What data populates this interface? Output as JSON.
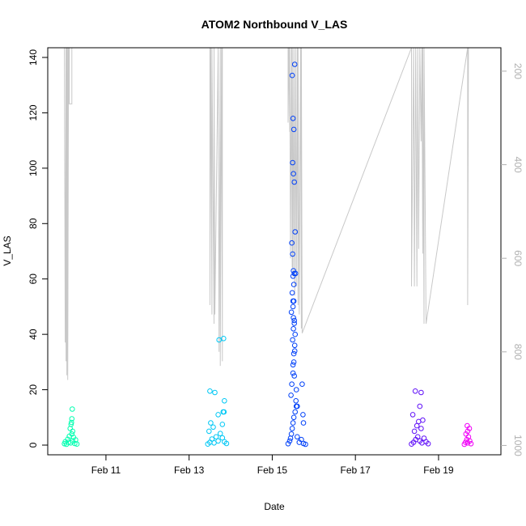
{
  "chart_data": {
    "type": "scatter",
    "title": "ATOM2 Northbound V_LAS",
    "xlabel": "Date",
    "ylabel": "V_LAS",
    "x_tick_labels": [
      "Feb 11",
      "Feb 13",
      "Feb 15",
      "Feb 17",
      "Feb 19"
    ],
    "x_tick_values": [
      11,
      13,
      15,
      17,
      19
    ],
    "xlim": [
      9.6,
      20.5
    ],
    "ylim": [
      -3.5,
      143.5
    ],
    "y_ticks": [
      0,
      20,
      40,
      60,
      80,
      100,
      120,
      140
    ],
    "y2_ticks": [
      200,
      400,
      600,
      800,
      1000
    ],
    "y2lim": [
      1020,
      150
    ],
    "y2_reversed": true,
    "grid": false,
    "series": [
      {
        "color": "#00ffb0",
        "x": [
          10.0,
          10.02,
          10.05,
          10.08,
          10.1,
          10.12,
          10.15,
          10.18,
          10.2,
          10.22,
          10.25,
          10.27,
          10.3,
          10.14,
          10.16,
          10.18,
          10.2,
          10.17,
          10.19
        ],
        "y": [
          0.5,
          1.2,
          0.3,
          2.1,
          1.0,
          3.2,
          0.8,
          4.0,
          1.5,
          2.8,
          0.6,
          1.9,
          0.4,
          6.0,
          7.5,
          9.5,
          5.0,
          8.2,
          13.0
        ]
      },
      {
        "color": "#00c8f5",
        "x": [
          13.45,
          13.5,
          13.55,
          13.6,
          13.65,
          13.7,
          13.75,
          13.8,
          13.85,
          13.9,
          13.48,
          13.52,
          13.58,
          13.62,
          13.7,
          13.8,
          13.82,
          13.85,
          13.84,
          13.72,
          13.83,
          13.5
        ],
        "y": [
          0.4,
          1.0,
          2.2,
          0.8,
          3.0,
          1.5,
          4.2,
          2.6,
          1.2,
          0.6,
          5.0,
          8.0,
          6.5,
          19.0,
          11.0,
          7.5,
          12.0,
          16.0,
          12.0,
          38.0,
          38.5,
          19.5
        ]
      },
      {
        "color": "#0040f8",
        "x": [
          15.38,
          15.42,
          15.44,
          15.46,
          15.48,
          15.5,
          15.52,
          15.55,
          15.58,
          15.6,
          15.65,
          15.7,
          15.75,
          15.8,
          15.45,
          15.47,
          15.5,
          15.52,
          15.54,
          15.49,
          15.51,
          15.53,
          15.46,
          15.5,
          15.48,
          15.52,
          15.5,
          15.53,
          15.51,
          15.49,
          15.47,
          15.55,
          15.53,
          15.51,
          15.49,
          15.52,
          15.5,
          15.48,
          15.54,
          15.56,
          15.52,
          15.5,
          15.51,
          15.53,
          15.55,
          15.54,
          15.52,
          15.5,
          15.53,
          15.58,
          15.57,
          15.6,
          15.72,
          15.75,
          15.74
        ],
        "y": [
          0.5,
          1.5,
          2.5,
          4.0,
          6.0,
          8.0,
          10.0,
          12.0,
          14.0,
          3.0,
          1.0,
          2.0,
          0.6,
          0.3,
          18.0,
          22.0,
          26.0,
          30.0,
          34.0,
          38.0,
          42.0,
          45.0,
          48.0,
          52.0,
          55.0,
          58.0,
          61.0,
          62.0,
          63.0,
          69.0,
          73.0,
          77.0,
          95.0,
          98.0,
          102.0,
          114.0,
          118.0,
          133.5,
          137.5,
          62.0,
          52.0,
          50.0,
          46.0,
          44.0,
          40.0,
          36.0,
          33.0,
          29.0,
          25.0,
          20.0,
          16.0,
          14.0,
          22.0,
          8.0,
          11.0
        ]
      },
      {
        "color": "#6010f8",
        "x": [
          18.35,
          18.4,
          18.45,
          18.5,
          18.55,
          18.6,
          18.65,
          18.7,
          18.75,
          18.42,
          18.48,
          18.52,
          18.58,
          18.44,
          18.55,
          18.62,
          18.58,
          18.38
        ],
        "y": [
          0.4,
          1.0,
          2.0,
          3.0,
          1.5,
          0.8,
          2.5,
          1.2,
          0.5,
          5.0,
          7.0,
          8.5,
          6.0,
          19.5,
          14.0,
          9.0,
          19.0,
          11.0
        ]
      },
      {
        "color": "#f000f8",
        "x": [
          19.62,
          19.65,
          19.68,
          19.7,
          19.72,
          19.75,
          19.78,
          19.66,
          19.7,
          19.74,
          19.69
        ],
        "y": [
          0.3,
          1.0,
          2.0,
          0.8,
          3.0,
          1.5,
          0.5,
          4.0,
          5.0,
          6.0,
          7.0
        ]
      }
    ],
    "secondary_series": {
      "color": "#c8c8c8",
      "description_axis": "right",
      "x": [
        10.0,
        10.02,
        10.04,
        10.04,
        10.06,
        10.06,
        10.08,
        10.08,
        10.1,
        10.1,
        10.12,
        10.12,
        10.15,
        10.18,
        10.18,
        11.7,
        13.5,
        13.5,
        13.52,
        13.55,
        13.55,
        13.6,
        13.6,
        13.62,
        13.7,
        13.72,
        13.75,
        13.75,
        13.78,
        13.8,
        13.8,
        14.5,
        15.38,
        15.38,
        15.4,
        15.42,
        15.42,
        15.44,
        15.46,
        15.48,
        15.48,
        15.5,
        15.52,
        15.54,
        15.56,
        15.58,
        15.6,
        15.62,
        15.62,
        15.65,
        15.68,
        15.7,
        15.7,
        15.72,
        18.35,
        18.35,
        18.4,
        18.42,
        18.45,
        18.48,
        18.5,
        18.52,
        18.55,
        18.58,
        18.6,
        18.62,
        18.62,
        18.65,
        18.65,
        18.7,
        19.7,
        19.7,
        19.72
      ],
      "y": [
        150,
        780,
        150,
        820,
        150,
        850,
        150,
        860,
        150,
        270,
        150,
        270,
        270,
        270,
        150,
        150,
        150,
        700,
        150,
        720,
        150,
        740,
        150,
        720,
        150,
        800,
        150,
        830,
        150,
        820,
        150,
        150,
        150,
        310,
        150,
        330,
        150,
        600,
        150,
        620,
        150,
        640,
        150,
        680,
        150,
        660,
        150,
        700,
        150,
        720,
        150,
        750,
        150,
        760,
        150,
        660,
        150,
        660,
        150,
        660,
        150,
        580,
        150,
        350,
        150,
        590,
        150,
        740,
        150,
        740,
        150,
        700,
        150
      ]
    }
  }
}
